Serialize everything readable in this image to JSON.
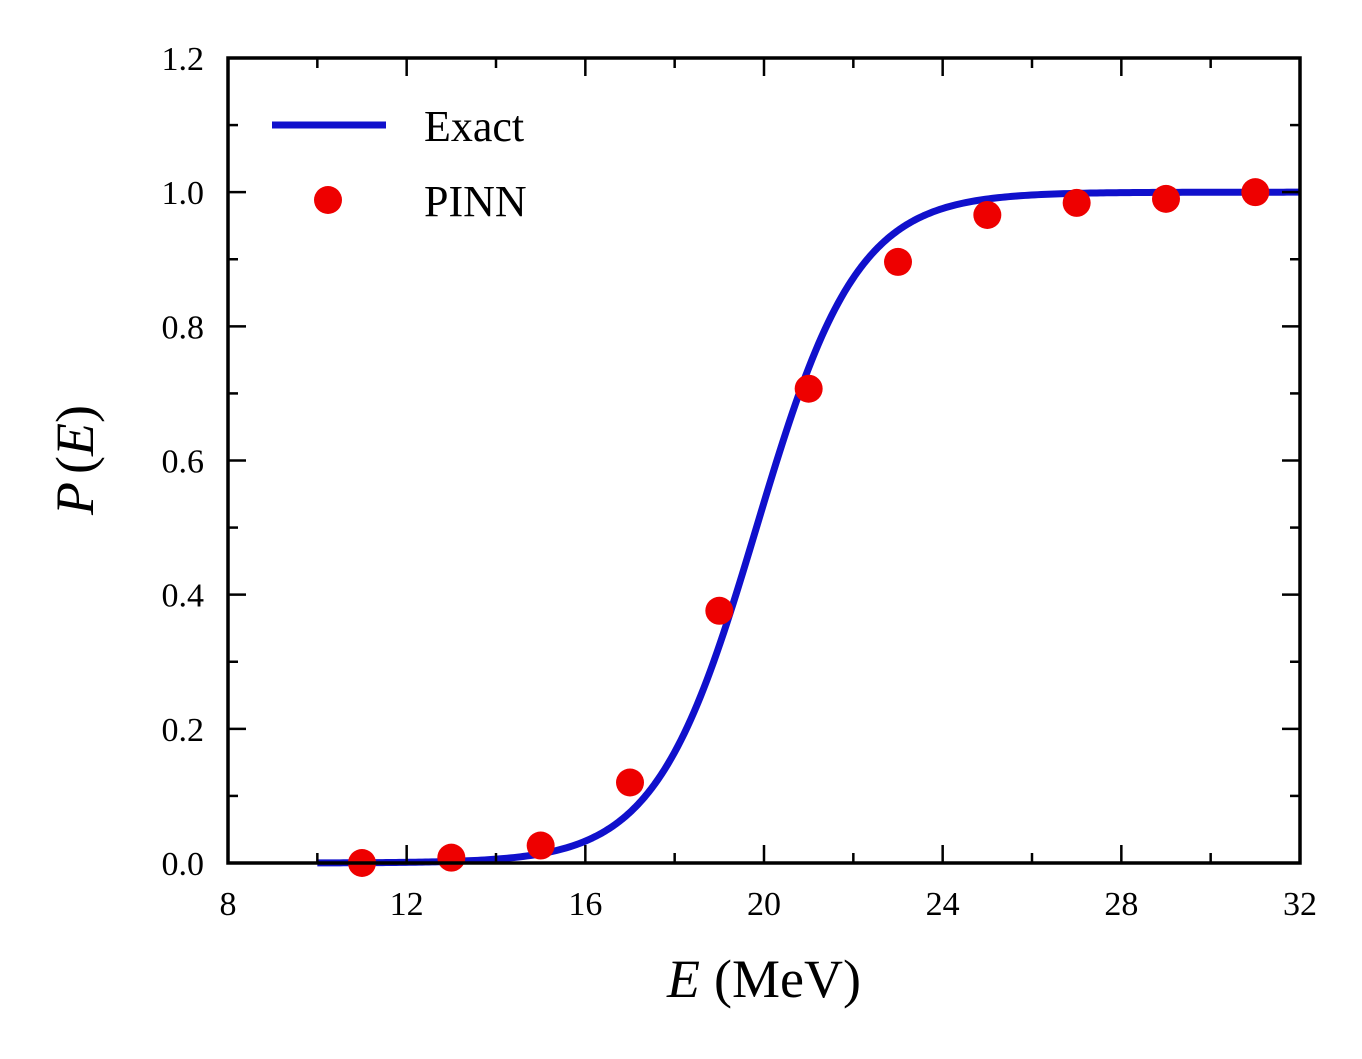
{
  "chart_data": {
    "type": "line",
    "xlabel": {
      "var": "E",
      "unit": "(MeV)"
    },
    "ylabel": {
      "func": "P",
      "open": "(",
      "var": "E",
      "close": ")"
    },
    "xlim": [
      8,
      32
    ],
    "ylim": [
      0.0,
      1.2
    ],
    "x_ticks": [
      "8",
      "12",
      "16",
      "20",
      "24",
      "28",
      "32"
    ],
    "y_ticks": [
      "0.0",
      "0.2",
      "0.4",
      "0.6",
      "0.8",
      "1.0",
      "1.2"
    ],
    "grid": false,
    "legend_position": "top-left",
    "series": [
      {
        "name": "Exact",
        "kind": "line",
        "color": "#1010cc",
        "curve": {
          "form": "logistic",
          "center": 19.83,
          "width": 1.13,
          "x_start": 10.0,
          "x_end": 32.0
        }
      },
      {
        "name": "PINN",
        "kind": "scatter",
        "color": "#ee0000",
        "x": [
          11,
          13,
          15,
          17,
          19,
          21,
          23,
          25,
          27,
          29,
          31
        ],
        "y": [
          0.0,
          0.008,
          0.026,
          0.12,
          0.376,
          0.707,
          0.896,
          0.966,
          0.984,
          0.99,
          1.0
        ]
      }
    ]
  }
}
